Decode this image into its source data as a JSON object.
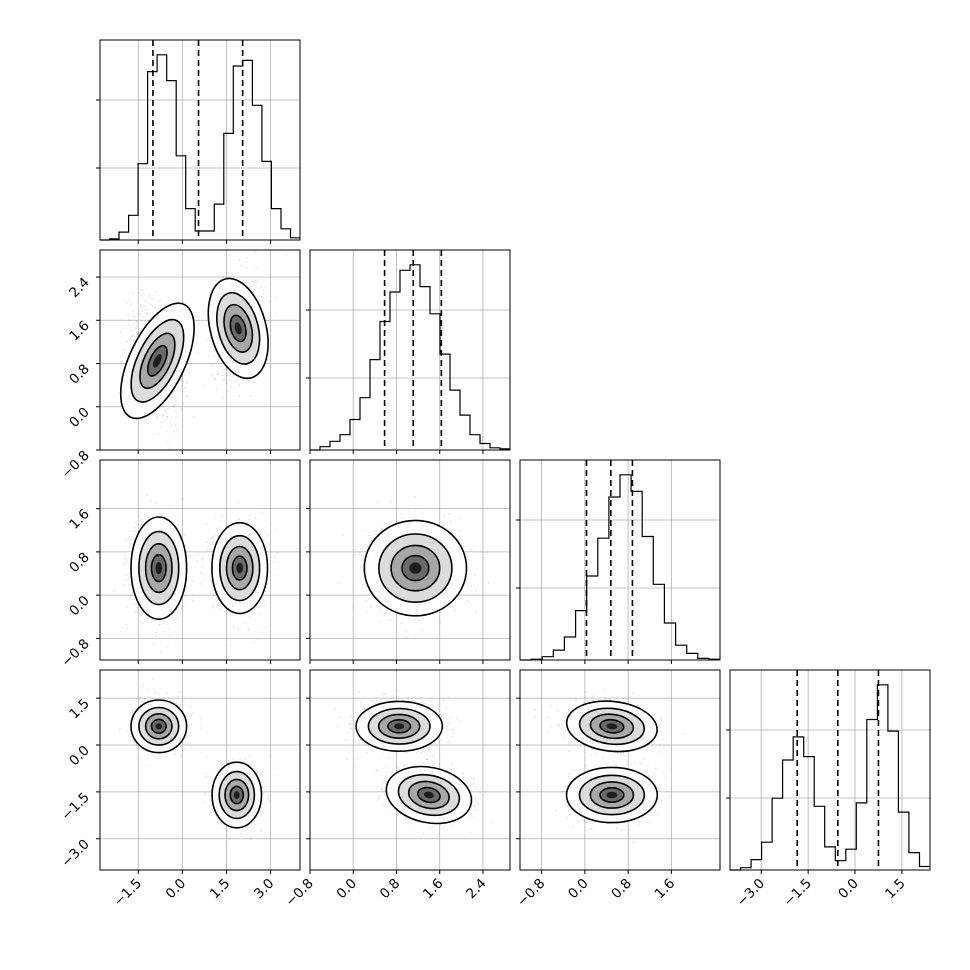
{
  "chart_data": {
    "type": "corner",
    "grid": true,
    "parameters": [
      {
        "index": 0,
        "range": [
          -2.8,
          4.0
        ],
        "ticks": [
          "−1.5",
          "0.0",
          "1.5",
          "3.0"
        ],
        "tick_values": [
          -1.5,
          0.0,
          1.5,
          3.0
        ],
        "quantiles": [
          -1.0,
          0.55,
          2.05
        ]
      },
      {
        "index": 1,
        "range": [
          -0.8,
          2.9
        ],
        "ticks": [
          "−0.8",
          "0.0",
          "0.8",
          "1.6",
          "2.4"
        ],
        "tick_values": [
          -0.8,
          0.0,
          0.8,
          1.6,
          2.4
        ],
        "quantiles": [
          0.58,
          1.11,
          1.63
        ]
      },
      {
        "index": 2,
        "range": [
          -1.2,
          2.5
        ],
        "ticks": [
          "−0.8",
          "0.0",
          "0.8",
          "1.6"
        ],
        "tick_values": [
          -0.8,
          0.0,
          0.8,
          1.6
        ],
        "quantiles": [
          0.03,
          0.48,
          0.88
        ]
      },
      {
        "index": 3,
        "range": [
          -4.0,
          2.4
        ],
        "ticks": [
          "−3.0",
          "−1.5",
          "0.0",
          "1.5"
        ],
        "tick_values": [
          -3.0,
          -1.5,
          0.0,
          1.5
        ],
        "quantiles": [
          -1.85,
          -0.55,
          0.75
        ]
      }
    ],
    "histograms": [
      {
        "param": 0,
        "counts": [
          0,
          1,
          7,
          22,
          68,
          150,
          165,
          142,
          75,
          28,
          8,
          8,
          32,
          95,
          155,
          160,
          120,
          70,
          28,
          10,
          2
        ]
      },
      {
        "param": 1,
        "counts": [
          0,
          3,
          8,
          14,
          28,
          48,
          83,
          118,
          145,
          165,
          170,
          150,
          125,
          88,
          55,
          32,
          14,
          6,
          2,
          1
        ]
      },
      {
        "param": 2,
        "counts": [
          0,
          1,
          4,
          12,
          28,
          60,
          102,
          148,
          198,
          225,
          205,
          150,
          92,
          45,
          18,
          8,
          2,
          1
        ]
      },
      {
        "param": 3,
        "counts": [
          0,
          2,
          9,
          24,
          62,
          95,
          115,
          98,
          55,
          20,
          8,
          18,
          58,
          130,
          160,
          120,
          50,
          15,
          3
        ]
      }
    ],
    "joint_distributions": [
      {
        "x_param": 0,
        "y_param": 1,
        "clusters": [
          {
            "center": [
              -0.85,
              0.85
            ],
            "spread": [
              0.45,
              0.55
            ],
            "corr": -0.45
          },
          {
            "center": [
              1.9,
              1.45
            ],
            "spread": [
              0.45,
              0.45
            ],
            "corr": 0.25
          }
        ]
      },
      {
        "x_param": 0,
        "y_param": 2,
        "clusters": [
          {
            "center": [
              -0.8,
              0.5
            ],
            "spread": [
              0.45,
              0.45
            ],
            "corr": 0.0
          },
          {
            "center": [
              1.95,
              0.5
            ],
            "spread": [
              0.45,
              0.4
            ],
            "corr": 0.0
          }
        ]
      },
      {
        "x_param": 0,
        "y_param": 3,
        "clusters": [
          {
            "center": [
              -0.8,
              0.6
            ],
            "spread": [
              0.45,
              0.4
            ],
            "corr": 0.0
          },
          {
            "center": [
              1.85,
              -1.6
            ],
            "spread": [
              0.4,
              0.5
            ],
            "corr": 0.0
          }
        ]
      },
      {
        "x_param": 1,
        "y_param": 2,
        "clusters": [
          {
            "center": [
              1.15,
              0.5
            ],
            "spread": [
              0.45,
              0.42
            ],
            "corr": 0.0
          }
        ]
      },
      {
        "x_param": 1,
        "y_param": 3,
        "clusters": [
          {
            "center": [
              0.85,
              0.6
            ],
            "spread": [
              0.38,
              0.38
            ],
            "corr": 0.0
          },
          {
            "center": [
              1.4,
              -1.6
            ],
            "spread": [
              0.38,
              0.42
            ],
            "corr": -0.2
          }
        ]
      },
      {
        "x_param": 2,
        "y_param": 3,
        "clusters": [
          {
            "center": [
              0.5,
              0.6
            ],
            "spread": [
              0.4,
              0.38
            ],
            "corr": -0.1
          },
          {
            "center": [
              0.5,
              -1.6
            ],
            "spread": [
              0.4,
              0.42
            ],
            "corr": 0.0
          }
        ]
      }
    ]
  }
}
